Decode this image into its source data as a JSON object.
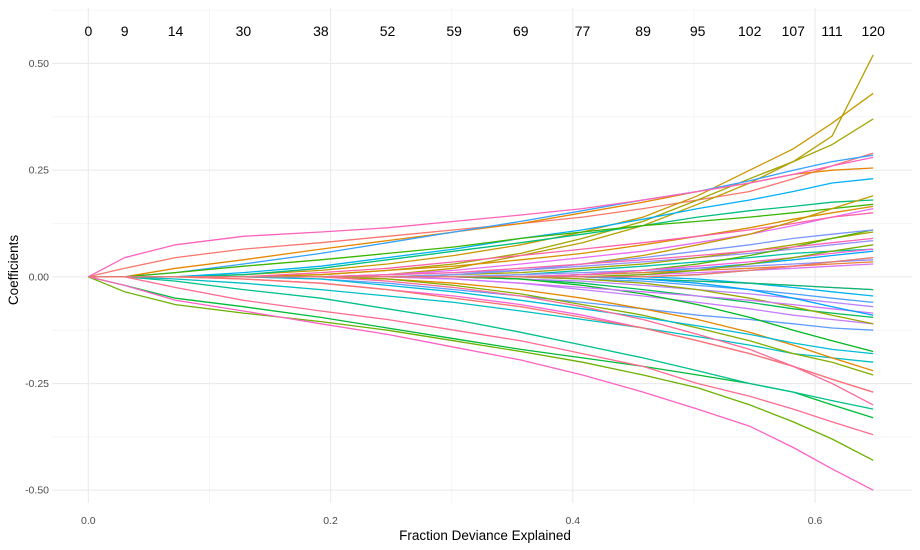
{
  "chart_data": {
    "type": "line",
    "title": "",
    "xlabel": "Fraction Deviance Explained",
    "ylabel": "Coefficients",
    "xlim": [
      -0.03,
      0.68
    ],
    "ylim": [
      -0.53,
      0.63
    ],
    "x_ticks": [
      0.0,
      0.2,
      0.4,
      0.6
    ],
    "x_tick_labels": [
      "0.0",
      "0.2",
      "0.4",
      "0.6"
    ],
    "y_ticks": [
      0.5,
      0.25,
      0.0,
      -0.25,
      -0.5
    ],
    "y_tick_labels": [
      "0.50",
      "0.25",
      "0.00",
      "-0.25",
      "-0.50"
    ],
    "top_axis": {
      "positions": [
        0.0,
        0.03,
        0.072,
        0.128,
        0.192,
        0.247,
        0.302,
        0.357,
        0.408,
        0.458,
        0.503,
        0.546,
        0.582,
        0.614,
        0.648
      ],
      "labels": [
        "0",
        "9",
        "14",
        "30",
        "38",
        "52",
        "59",
        "69",
        "77",
        "89",
        "95",
        "102",
        "107",
        "111",
        "120"
      ]
    },
    "grid": true,
    "legend": "none",
    "x": [
      0.0,
      0.03,
      0.072,
      0.128,
      0.192,
      0.247,
      0.302,
      0.357,
      0.408,
      0.458,
      0.503,
      0.546,
      0.582,
      0.614,
      0.648
    ],
    "series": [
      {
        "color": "#F8766D",
        "values": [
          0,
          0.02,
          0.045,
          0.065,
          0.08,
          0.095,
          0.11,
          0.125,
          0.14,
          0.16,
          0.18,
          0.2,
          0.23,
          0.26,
          0.29
        ]
      },
      {
        "color": "#E58700",
        "values": [
          0,
          0,
          0.02,
          0.04,
          0.065,
          0.085,
          0.105,
          0.125,
          0.15,
          0.175,
          0.2,
          0.22,
          0.24,
          0.25,
          0.255
        ]
      },
      {
        "color": "#C99800",
        "values": [
          0,
          0,
          0,
          0.005,
          0.015,
          0.03,
          0.05,
          0.075,
          0.105,
          0.14,
          0.19,
          0.25,
          0.3,
          0.36,
          0.43
        ]
      },
      {
        "color": "#A3A500",
        "values": [
          0,
          0,
          0,
          0,
          0.005,
          0.015,
          0.03,
          0.055,
          0.09,
          0.13,
          0.18,
          0.23,
          0.27,
          0.31,
          0.37
        ]
      },
      {
        "color": "#B79F00",
        "values": [
          0,
          0,
          0,
          0,
          0,
          0.005,
          0.02,
          0.05,
          0.08,
          0.12,
          0.17,
          0.22,
          0.27,
          0.33,
          0.52
        ]
      },
      {
        "color": "#6BB100",
        "values": [
          0,
          -0.035,
          -0.065,
          -0.085,
          -0.105,
          -0.125,
          -0.15,
          -0.175,
          -0.2,
          -0.23,
          -0.26,
          -0.3,
          -0.34,
          -0.38,
          -0.43
        ]
      },
      {
        "color": "#00BA38",
        "values": [
          0,
          -0.02,
          -0.05,
          -0.07,
          -0.095,
          -0.12,
          -0.145,
          -0.17,
          -0.19,
          -0.21,
          -0.23,
          -0.25,
          -0.27,
          -0.3,
          -0.33
        ]
      },
      {
        "color": "#00C08B",
        "values": [
          0,
          0,
          -0.01,
          -0.03,
          -0.05,
          -0.075,
          -0.1,
          -0.13,
          -0.16,
          -0.19,
          -0.22,
          -0.25,
          -0.27,
          -0.29,
          -0.31
        ]
      },
      {
        "color": "#00BF7D",
        "values": [
          0,
          0,
          0,
          0.005,
          0.02,
          0.04,
          0.06,
          0.08,
          0.1,
          0.12,
          0.14,
          0.155,
          0.165,
          0.175,
          0.18
        ]
      },
      {
        "color": "#00BFC4",
        "values": [
          0,
          0,
          -0.005,
          -0.015,
          -0.03,
          -0.045,
          -0.06,
          -0.08,
          -0.1,
          -0.12,
          -0.14,
          -0.16,
          -0.18,
          -0.19,
          -0.2
        ]
      },
      {
        "color": "#00B0F6",
        "values": [
          0,
          0,
          0,
          0.01,
          0.025,
          0.045,
          0.065,
          0.09,
          0.11,
          0.135,
          0.16,
          0.18,
          0.2,
          0.22,
          0.23
        ]
      },
      {
        "color": "#35A2FF",
        "values": [
          0,
          0,
          0.01,
          0.03,
          0.055,
          0.08,
          0.105,
          0.13,
          0.155,
          0.18,
          0.2,
          0.225,
          0.25,
          0.27,
          0.285
        ]
      },
      {
        "color": "#619CFF",
        "values": [
          0,
          0,
          0,
          0,
          -0.005,
          -0.015,
          -0.03,
          -0.045,
          -0.06,
          -0.075,
          -0.09,
          -0.1,
          -0.11,
          -0.12,
          -0.125
        ]
      },
      {
        "color": "#9590FF",
        "values": [
          0,
          0,
          0,
          0,
          0,
          0.005,
          0.01,
          0.015,
          0.025,
          0.035,
          0.045,
          0.055,
          0.065,
          0.075,
          0.085
        ]
      },
      {
        "color": "#C77CFF",
        "values": [
          0,
          0,
          0,
          0,
          0,
          0,
          -0.005,
          -0.015,
          -0.03,
          -0.045,
          -0.06,
          -0.075,
          -0.09,
          -0.1,
          -0.11
        ]
      },
      {
        "color": "#E76BF3",
        "values": [
          0,
          0,
          0,
          0,
          0,
          0.005,
          0.015,
          0.03,
          0.045,
          0.06,
          0.08,
          0.1,
          0.12,
          0.14,
          0.16
        ]
      },
      {
        "color": "#FA62DB",
        "values": [
          0,
          0,
          0,
          -0.005,
          -0.015,
          -0.03,
          -0.045,
          -0.065,
          -0.09,
          -0.12,
          -0.15,
          -0.18,
          -0.21,
          -0.24,
          -0.27
        ]
      },
      {
        "color": "#FF62BC",
        "values": [
          0,
          0.045,
          0.075,
          0.095,
          0.105,
          0.115,
          0.13,
          0.145,
          0.16,
          0.18,
          0.2,
          0.22,
          0.24,
          0.26,
          0.28
        ]
      },
      {
        "color": "#FF6C91",
        "values": [
          0,
          0,
          -0.025,
          -0.055,
          -0.08,
          -0.1,
          -0.125,
          -0.15,
          -0.18,
          -0.21,
          -0.25,
          -0.28,
          -0.31,
          -0.34,
          -0.37
        ]
      },
      {
        "color": "#FF61C3",
        "values": [
          0,
          -0.02,
          -0.055,
          -0.08,
          -0.11,
          -0.135,
          -0.165,
          -0.195,
          -0.23,
          -0.27,
          -0.31,
          -0.35,
          -0.4,
          -0.45,
          -0.5
        ]
      },
      {
        "color": "#F8766D",
        "values": [
          0,
          0,
          0,
          -0.005,
          -0.015,
          -0.03,
          -0.05,
          -0.07,
          -0.095,
          -0.12,
          -0.15,
          -0.18,
          -0.21,
          -0.24,
          -0.27
        ]
      },
      {
        "color": "#D89000",
        "values": [
          0,
          0,
          0,
          0,
          0.005,
          0.015,
          0.025,
          0.04,
          0.055,
          0.075,
          0.095,
          0.115,
          0.135,
          0.15,
          0.165
        ]
      },
      {
        "color": "#E58700",
        "values": [
          0,
          0,
          0,
          0,
          0,
          -0.005,
          -0.015,
          -0.03,
          -0.05,
          -0.075,
          -0.1,
          -0.13,
          -0.16,
          -0.19,
          -0.22
        ]
      },
      {
        "color": "#A3A500",
        "values": [
          0,
          0,
          0,
          0,
          0,
          0,
          0.005,
          0.01,
          0.02,
          0.03,
          0.045,
          0.06,
          0.075,
          0.09,
          0.105
        ]
      },
      {
        "color": "#85AD00",
        "values": [
          0,
          0,
          0,
          0,
          0,
          -0.005,
          -0.02,
          -0.04,
          -0.065,
          -0.09,
          -0.12,
          -0.15,
          -0.18,
          -0.2,
          -0.23
        ]
      },
      {
        "color": "#39B600",
        "values": [
          0,
          0,
          0.01,
          0.025,
          0.04,
          0.055,
          0.07,
          0.09,
          0.105,
          0.12,
          0.13,
          0.14,
          0.15,
          0.16,
          0.17
        ]
      },
      {
        "color": "#00BC56",
        "values": [
          0,
          0,
          0,
          0,
          0,
          0,
          0,
          -0.005,
          -0.015,
          -0.03,
          -0.045,
          -0.06,
          -0.075,
          -0.085,
          -0.095
        ]
      },
      {
        "color": "#00C1A3",
        "values": [
          0,
          0,
          0,
          0,
          0,
          0,
          0,
          0.005,
          0.015,
          0.025,
          0.035,
          0.045,
          0.055,
          0.06,
          0.065
        ]
      },
      {
        "color": "#00BCD8",
        "values": [
          0,
          0,
          0,
          0,
          -0.005,
          -0.02,
          -0.035,
          -0.055,
          -0.075,
          -0.095,
          -0.115,
          -0.135,
          -0.155,
          -0.17,
          -0.18
        ]
      },
      {
        "color": "#00A9FF",
        "values": [
          0,
          0,
          0,
          0,
          0,
          0,
          0,
          0,
          0.005,
          0.01,
          0.02,
          0.03,
          0.04,
          0.05,
          0.06
        ]
      },
      {
        "color": "#4F9FFF",
        "values": [
          0,
          0,
          0,
          0,
          0,
          0,
          0,
          0,
          -0.005,
          -0.01,
          -0.02,
          -0.03,
          -0.04,
          -0.05,
          -0.06
        ]
      },
      {
        "color": "#8F91FF",
        "values": [
          0,
          0,
          0,
          0,
          0,
          0,
          0,
          0.005,
          0.01,
          0.015,
          0.02,
          0.025,
          0.03,
          0.035,
          0.04
        ]
      },
      {
        "color": "#B983FF",
        "values": [
          0,
          0,
          0,
          0,
          0,
          0,
          0,
          -0.005,
          -0.01,
          -0.02,
          -0.03,
          -0.04,
          -0.05,
          -0.06,
          -0.07
        ]
      },
      {
        "color": "#DB72FB",
        "values": [
          0,
          0,
          0,
          0,
          0,
          0,
          0,
          0,
          0,
          0.005,
          0.01,
          0.015,
          0.02,
          0.025,
          0.03
        ]
      },
      {
        "color": "#F365E6",
        "values": [
          0,
          0,
          0,
          0,
          0,
          0,
          0,
          0,
          0,
          -0.005,
          -0.01,
          -0.015,
          -0.02,
          -0.025,
          -0.03
        ]
      },
      {
        "color": "#FF61A6",
        "values": [
          0,
          0,
          0,
          0,
          0.01,
          0.02,
          0.035,
          0.05,
          0.065,
          0.08,
          0.095,
          0.11,
          0.125,
          0.14,
          0.15
        ]
      },
      {
        "color": "#FF6A98",
        "values": [
          0,
          0,
          0,
          0,
          0,
          -0.01,
          -0.025,
          -0.045,
          -0.07,
          -0.1,
          -0.135,
          -0.17,
          -0.21,
          -0.25,
          -0.3
        ]
      },
      {
        "color": "#C49A00",
        "values": [
          0,
          0,
          0,
          0,
          0,
          0,
          0.005,
          0.015,
          0.03,
          0.05,
          0.075,
          0.1,
          0.13,
          0.16,
          0.19
        ]
      },
      {
        "color": "#99A800",
        "values": [
          0,
          0,
          0,
          0,
          0,
          0,
          0,
          0,
          -0.005,
          -0.015,
          -0.03,
          -0.05,
          -0.07,
          -0.09,
          -0.11
        ]
      },
      {
        "color": "#53B400",
        "values": [
          0,
          0,
          0,
          0,
          0,
          0,
          0,
          0,
          0.005,
          0.015,
          0.03,
          0.05,
          0.07,
          0.09,
          0.11
        ]
      },
      {
        "color": "#00B81F",
        "values": [
          0,
          0,
          0,
          0,
          0,
          0,
          0,
          -0.005,
          -0.02,
          -0.04,
          -0.065,
          -0.095,
          -0.125,
          -0.15,
          -0.175
        ]
      },
      {
        "color": "#00C0B8",
        "values": [
          0,
          0,
          0,
          0,
          0,
          0,
          0,
          0,
          0,
          0,
          0.005,
          0.015,
          0.025,
          0.035,
          0.045
        ]
      },
      {
        "color": "#00B4EF",
        "values": [
          0,
          0,
          0,
          0,
          0,
          0,
          0,
          0,
          0,
          0,
          -0.005,
          -0.015,
          -0.025,
          -0.035,
          -0.045
        ]
      },
      {
        "color": "#7997FF",
        "values": [
          0,
          0,
          0,
          0,
          0,
          0,
          0.005,
          0.015,
          0.03,
          0.045,
          0.06,
          0.075,
          0.09,
          0.1,
          0.11
        ]
      },
      {
        "color": "#D175FF",
        "values": [
          0,
          0,
          0,
          0,
          0,
          0,
          -0.005,
          -0.015,
          -0.025,
          -0.035,
          -0.045,
          -0.055,
          -0.065,
          -0.075,
          -0.085
        ]
      },
      {
        "color": "#FF64B0",
        "values": [
          0,
          0,
          0,
          0,
          0,
          0.005,
          0.01,
          0.02,
          0.03,
          0.04,
          0.05,
          0.06,
          0.07,
          0.08,
          0.09
        ]
      },
      {
        "color": "#EA8331",
        "values": [
          0,
          0,
          0,
          0,
          0,
          0,
          0,
          0,
          0.005,
          0.01,
          0.015,
          0.02,
          0.025,
          0.03,
          0.035
        ]
      },
      {
        "color": "#00BE6C",
        "values": [
          0,
          0,
          0,
          0,
          0,
          0,
          0,
          0,
          0,
          -0.005,
          -0.01,
          -0.015,
          -0.02,
          -0.025,
          -0.03
        ]
      },
      {
        "color": "#FD61D1",
        "values": [
          0,
          0,
          0,
          0,
          0,
          0,
          0,
          0,
          0.005,
          0.015,
          0.025,
          0.035,
          0.045,
          0.055,
          0.065
        ]
      },
      {
        "color": "#7CAE00",
        "values": [
          0,
          0,
          0,
          0,
          0,
          0,
          0,
          0,
          0,
          0.005,
          0.015,
          0.03,
          0.045,
          0.06,
          0.075
        ]
      },
      {
        "color": "#00A5FF",
        "values": [
          0,
          0,
          0,
          0,
          0,
          0,
          0,
          0,
          0,
          -0.005,
          -0.015,
          -0.03,
          -0.05,
          -0.07,
          -0.09
        ]
      },
      {
        "color": "#F8766D",
        "values": [
          0,
          0,
          0,
          0,
          0,
          0,
          0,
          0,
          0,
          0,
          0.005,
          0.015,
          0.025,
          0.035,
          0.045
        ]
      }
    ]
  }
}
